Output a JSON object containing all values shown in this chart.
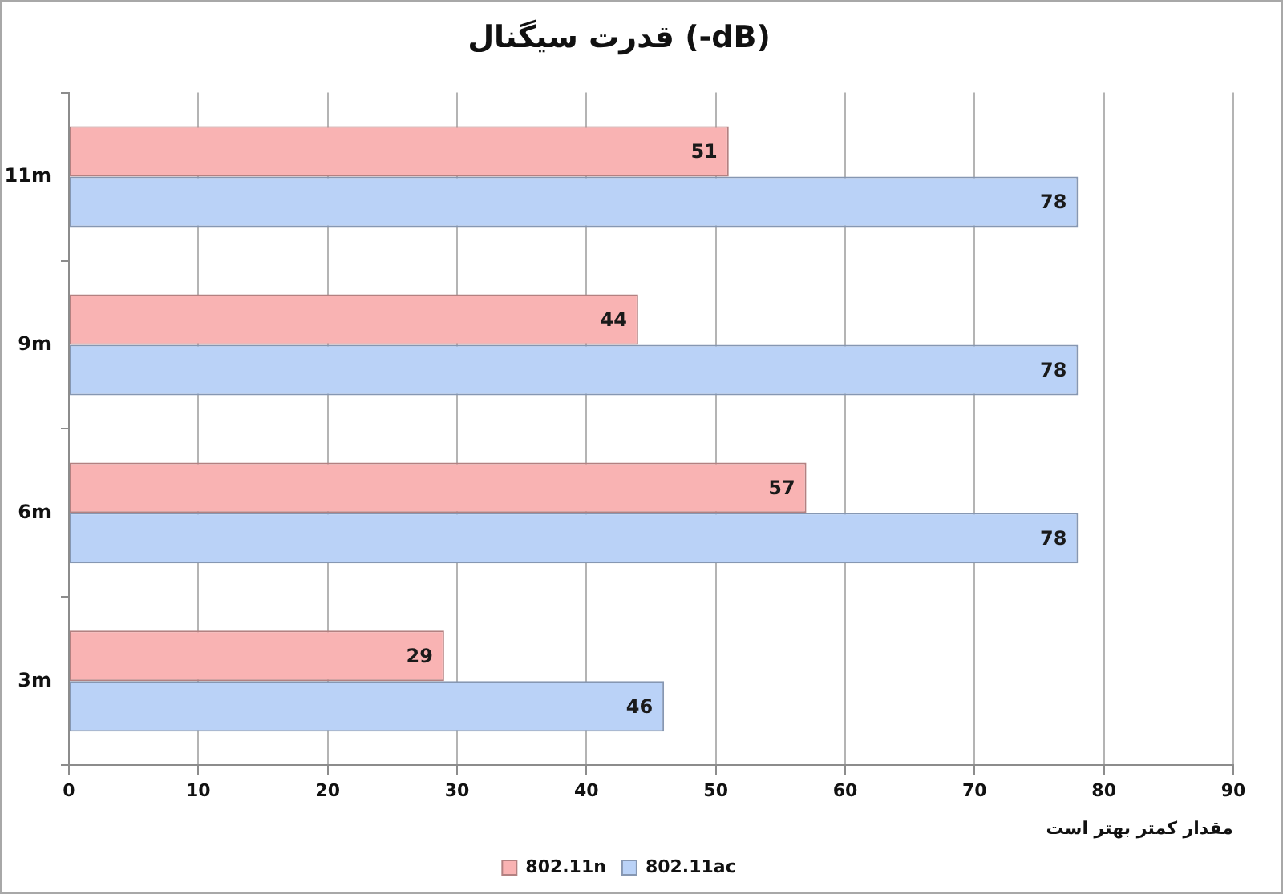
{
  "chart_data": {
    "type": "bar",
    "orientation": "horizontal",
    "title": "قدرت سیگنال (-dB)",
    "xlabel": "مقدار کمتر بهتر است",
    "categories": [
      "11m",
      "9m",
      "6m",
      "3m"
    ],
    "series": [
      {
        "name": "802.11n",
        "color": "#f9b3b3",
        "values": [
          51,
          44,
          57,
          29
        ]
      },
      {
        "name": "802.11ac",
        "color": "#bad2f7",
        "values": [
          78,
          78,
          78,
          46
        ]
      }
    ],
    "xlim": [
      0,
      90
    ],
    "xticks": [
      0,
      10,
      20,
      30,
      40,
      50,
      60,
      70,
      80,
      90
    ],
    "grid": "x",
    "legend": "bottom",
    "data_labels": true
  }
}
